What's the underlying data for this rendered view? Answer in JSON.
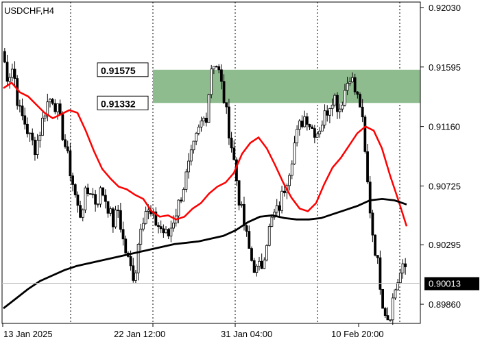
{
  "chart_data": {
    "type": "candlestick",
    "symbol_label": "USDCHF,H4",
    "y_range": [
      0.8972,
      0.9207
    ],
    "y_ticks": [
      "0.92030",
      "0.91595",
      "0.91160",
      "0.90725",
      "0.90295",
      "0.89860"
    ],
    "x_tick_labels": [
      "13 Jan 2025",
      "22 Jan 12:00",
      "31 Jan 04:00",
      "10 Feb 20:00"
    ],
    "current_price": "0.90013",
    "zone": {
      "top_label": "0.91575",
      "bottom_label": "0.91332",
      "top": 0.91575,
      "bottom": 0.91332,
      "color": "#8fbc8f"
    },
    "grid": "vertical dotted",
    "series": [
      {
        "kind": "candles",
        "bull_color": "#000000",
        "bear_color": "#000000",
        "bar_count": 160,
        "anchors": [
          0.9171,
          0.9152,
          0.916,
          0.9128,
          0.912,
          0.9108,
          0.91,
          0.9115,
          0.9132,
          0.9138,
          0.9128,
          0.911,
          0.909,
          0.907,
          0.905,
          0.9065,
          0.907,
          0.906,
          0.907,
          0.906,
          0.9045,
          0.9055,
          0.903,
          0.9015,
          0.9005,
          0.9045,
          0.9055,
          0.905,
          0.9045,
          0.904,
          0.9035,
          0.9048,
          0.906,
          0.9075,
          0.909,
          0.9105,
          0.9118,
          0.9125,
          0.9165,
          0.916,
          0.914,
          0.9115,
          0.909,
          0.906,
          0.904,
          0.902,
          0.901,
          0.9015,
          0.9035,
          0.905,
          0.9055,
          0.907,
          0.9085,
          0.9105,
          0.9118,
          0.9125,
          0.9115,
          0.9112,
          0.912,
          0.913,
          0.914,
          0.9128,
          0.9142,
          0.9155,
          0.914,
          0.913,
          0.908,
          0.904,
          0.9015,
          0.8985,
          0.8975,
          0.8995,
          0.9008,
          0.9013
        ],
        "high_low_spread": 0.0006,
        "seed": 7
      },
      {
        "kind": "line",
        "name_hidden": true,
        "color": "#ff0000",
        "values": [
          0.9144,
          0.9148,
          0.9141,
          0.9138,
          0.9132,
          0.9126,
          0.9122,
          0.9125,
          0.9128,
          0.9126,
          0.9113,
          0.9098,
          0.9085,
          0.9078,
          0.9072,
          0.907,
          0.9066,
          0.9063,
          0.9054,
          0.905,
          0.9051,
          0.9048,
          0.905,
          0.9056,
          0.906,
          0.9067,
          0.9072,
          0.9075,
          0.9082,
          0.9096,
          0.9104,
          0.9108,
          0.91,
          0.9088,
          0.9075,
          0.9064,
          0.9056,
          0.9054,
          0.906,
          0.9074,
          0.9086,
          0.9093,
          0.9102,
          0.9111,
          0.9116,
          0.9113,
          0.91,
          0.908,
          0.9062,
          0.9043
        ]
      },
      {
        "kind": "line",
        "name_hidden": true,
        "color": "#000000",
        "values": [
          0.8983,
          0.899,
          0.8997,
          0.9003,
          0.9007,
          0.9011,
          0.9014,
          0.9016,
          0.9018,
          0.902,
          0.9022,
          0.9024,
          0.9026,
          0.9028,
          0.903,
          0.9031,
          0.9032,
          0.9034,
          0.9036,
          0.904,
          0.9046,
          0.905,
          0.9051,
          0.9049,
          0.9048,
          0.9048,
          0.9049,
          0.9052,
          0.9055,
          0.9058,
          0.9062,
          0.9063,
          0.9062,
          0.9059
        ]
      }
    ]
  }
}
